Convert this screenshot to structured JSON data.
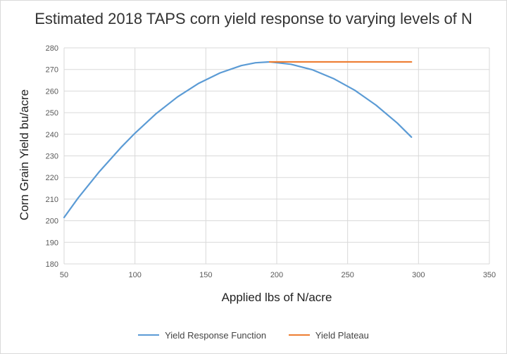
{
  "chart_data": {
    "type": "line",
    "title": "Estimated 2018 TAPS corn yield response to varying levels of N",
    "xlabel": "Applied lbs of N/acre",
    "ylabel": "Corn Grain Yield bu/acre",
    "xlim": [
      50,
      350
    ],
    "ylim": [
      180,
      280
    ],
    "xticks": [
      50,
      100,
      150,
      200,
      250,
      300,
      350
    ],
    "yticks": [
      180,
      190,
      200,
      210,
      220,
      230,
      240,
      250,
      260,
      270,
      280
    ],
    "grid": true,
    "legend": "bottom",
    "series": [
      {
        "name": "Yield Response Function",
        "color": "#5B9BD5",
        "x": [
          50,
          60,
          75,
          90,
          100,
          115,
          130,
          145,
          160,
          175,
          185,
          195,
          210,
          225,
          240,
          255,
          270,
          285,
          295
        ],
        "y": [
          201.5,
          210.6,
          222.8,
          233.8,
          240.5,
          249.6,
          257.3,
          263.6,
          268.4,
          271.8,
          273.1,
          273.5,
          272.4,
          269.9,
          265.8,
          260.4,
          253.5,
          245.2,
          238.7
        ]
      },
      {
        "name": "Yield Plateau",
        "color": "#ED7D31",
        "x": [
          195,
          295
        ],
        "y": [
          273.5,
          273.5
        ]
      }
    ]
  }
}
